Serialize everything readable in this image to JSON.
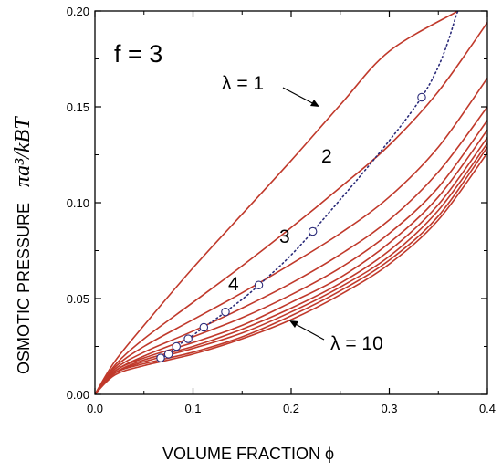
{
  "chart_data": {
    "type": "line",
    "panel_label": "f = 3",
    "xlabel": "VOLUME FRACTION ϕ",
    "ylabel_text": "OSMOTIC PRESSURE",
    "ylabel_math": "πa³/kBT",
    "xlim": [
      0,
      0.4
    ],
    "ylim": [
      0,
      0.2
    ],
    "xticks": [
      "0.0",
      "0.1",
      "0.2",
      "0.3",
      "0.4"
    ],
    "yticks": [
      "0.00",
      "0.05",
      "0.10",
      "0.15",
      "0.20"
    ],
    "xtick_values": [
      0,
      0.1,
      0.2,
      0.3,
      0.4
    ],
    "ytick_values": [
      0,
      0.05,
      0.1,
      0.15,
      0.2
    ],
    "grid": false,
    "curve_color": "#c0392b",
    "dotted_color": "#2c2c7a",
    "series": [
      {
        "lambda": 1,
        "x": [
          0,
          0.02,
          0.05,
          0.1,
          0.15,
          0.2,
          0.25,
          0.3,
          0.37
        ],
        "y": [
          0,
          0.017,
          0.036,
          0.066,
          0.094,
          0.122,
          0.151,
          0.179,
          0.2
        ]
      },
      {
        "lambda": 2,
        "x": [
          0,
          0.02,
          0.05,
          0.1,
          0.15,
          0.2,
          0.25,
          0.3,
          0.35,
          0.4
        ],
        "y": [
          0,
          0.015,
          0.029,
          0.048,
          0.067,
          0.087,
          0.108,
          0.13,
          0.158,
          0.194
        ]
      },
      {
        "lambda": 3,
        "x": [
          0,
          0.02,
          0.05,
          0.1,
          0.15,
          0.2,
          0.25,
          0.3,
          0.35,
          0.4
        ],
        "y": [
          0,
          0.014,
          0.025,
          0.039,
          0.053,
          0.068,
          0.084,
          0.103,
          0.129,
          0.165
        ]
      },
      {
        "lambda": 4,
        "x": [
          0,
          0.02,
          0.05,
          0.1,
          0.15,
          0.2,
          0.25,
          0.3,
          0.35,
          0.4
        ],
        "y": [
          0,
          0.013,
          0.022,
          0.033,
          0.045,
          0.058,
          0.073,
          0.091,
          0.116,
          0.15
        ]
      },
      {
        "lambda": 5,
        "x": [
          0,
          0.02,
          0.05,
          0.1,
          0.15,
          0.2,
          0.25,
          0.3,
          0.35,
          0.4
        ],
        "y": [
          0,
          0.012,
          0.02,
          0.03,
          0.04,
          0.052,
          0.066,
          0.084,
          0.108,
          0.143
        ]
      },
      {
        "lambda": 6,
        "x": [
          0,
          0.02,
          0.05,
          0.1,
          0.15,
          0.2,
          0.25,
          0.3,
          0.35,
          0.4
        ],
        "y": [
          0,
          0.012,
          0.019,
          0.027,
          0.036,
          0.048,
          0.061,
          0.079,
          0.103,
          0.138
        ]
      },
      {
        "lambda": 7,
        "x": [
          0,
          0.02,
          0.05,
          0.1,
          0.15,
          0.2,
          0.25,
          0.3,
          0.35,
          0.4
        ],
        "y": [
          0,
          0.011,
          0.018,
          0.025,
          0.034,
          0.045,
          0.058,
          0.075,
          0.099,
          0.134
        ]
      },
      {
        "lambda": 8,
        "x": [
          0,
          0.02,
          0.05,
          0.1,
          0.15,
          0.2,
          0.25,
          0.3,
          0.35,
          0.4
        ],
        "y": [
          0,
          0.011,
          0.017,
          0.024,
          0.032,
          0.043,
          0.056,
          0.072,
          0.096,
          0.131
        ]
      },
      {
        "lambda": 9,
        "x": [
          0,
          0.02,
          0.05,
          0.1,
          0.15,
          0.2,
          0.25,
          0.3,
          0.35,
          0.4
        ],
        "y": [
          0,
          0.011,
          0.016,
          0.022,
          0.03,
          0.041,
          0.054,
          0.07,
          0.093,
          0.129
        ]
      },
      {
        "lambda": 10,
        "x": [
          0,
          0.02,
          0.05,
          0.1,
          0.15,
          0.2,
          0.25,
          0.3,
          0.35,
          0.4
        ],
        "y": [
          0,
          0.01,
          0.015,
          0.021,
          0.029,
          0.039,
          0.052,
          0.068,
          0.091,
          0.126
        ]
      }
    ],
    "dotted_curve": {
      "x": [
        0.067,
        0.075,
        0.083,
        0.095,
        0.111,
        0.133,
        0.167,
        0.222,
        0.333,
        0.37
      ],
      "y": [
        0.019,
        0.021,
        0.025,
        0.029,
        0.035,
        0.043,
        0.057,
        0.085,
        0.155,
        0.2
      ]
    },
    "markers": {
      "x": [
        0.067,
        0.075,
        0.083,
        0.095,
        0.111,
        0.133,
        0.167,
        0.222,
        0.333
      ],
      "y": [
        0.019,
        0.021,
        0.025,
        0.029,
        0.035,
        0.043,
        0.057,
        0.085,
        0.155
      ]
    },
    "annotations": [
      {
        "text": "λ = 1",
        "arrow_to": [
          0.23,
          0.149
        ]
      },
      {
        "text": "2"
      },
      {
        "text": "3"
      },
      {
        "text": "4"
      },
      {
        "text": "λ = 10",
        "arrow_to": [
          0.2,
          0.077
        ]
      }
    ]
  }
}
